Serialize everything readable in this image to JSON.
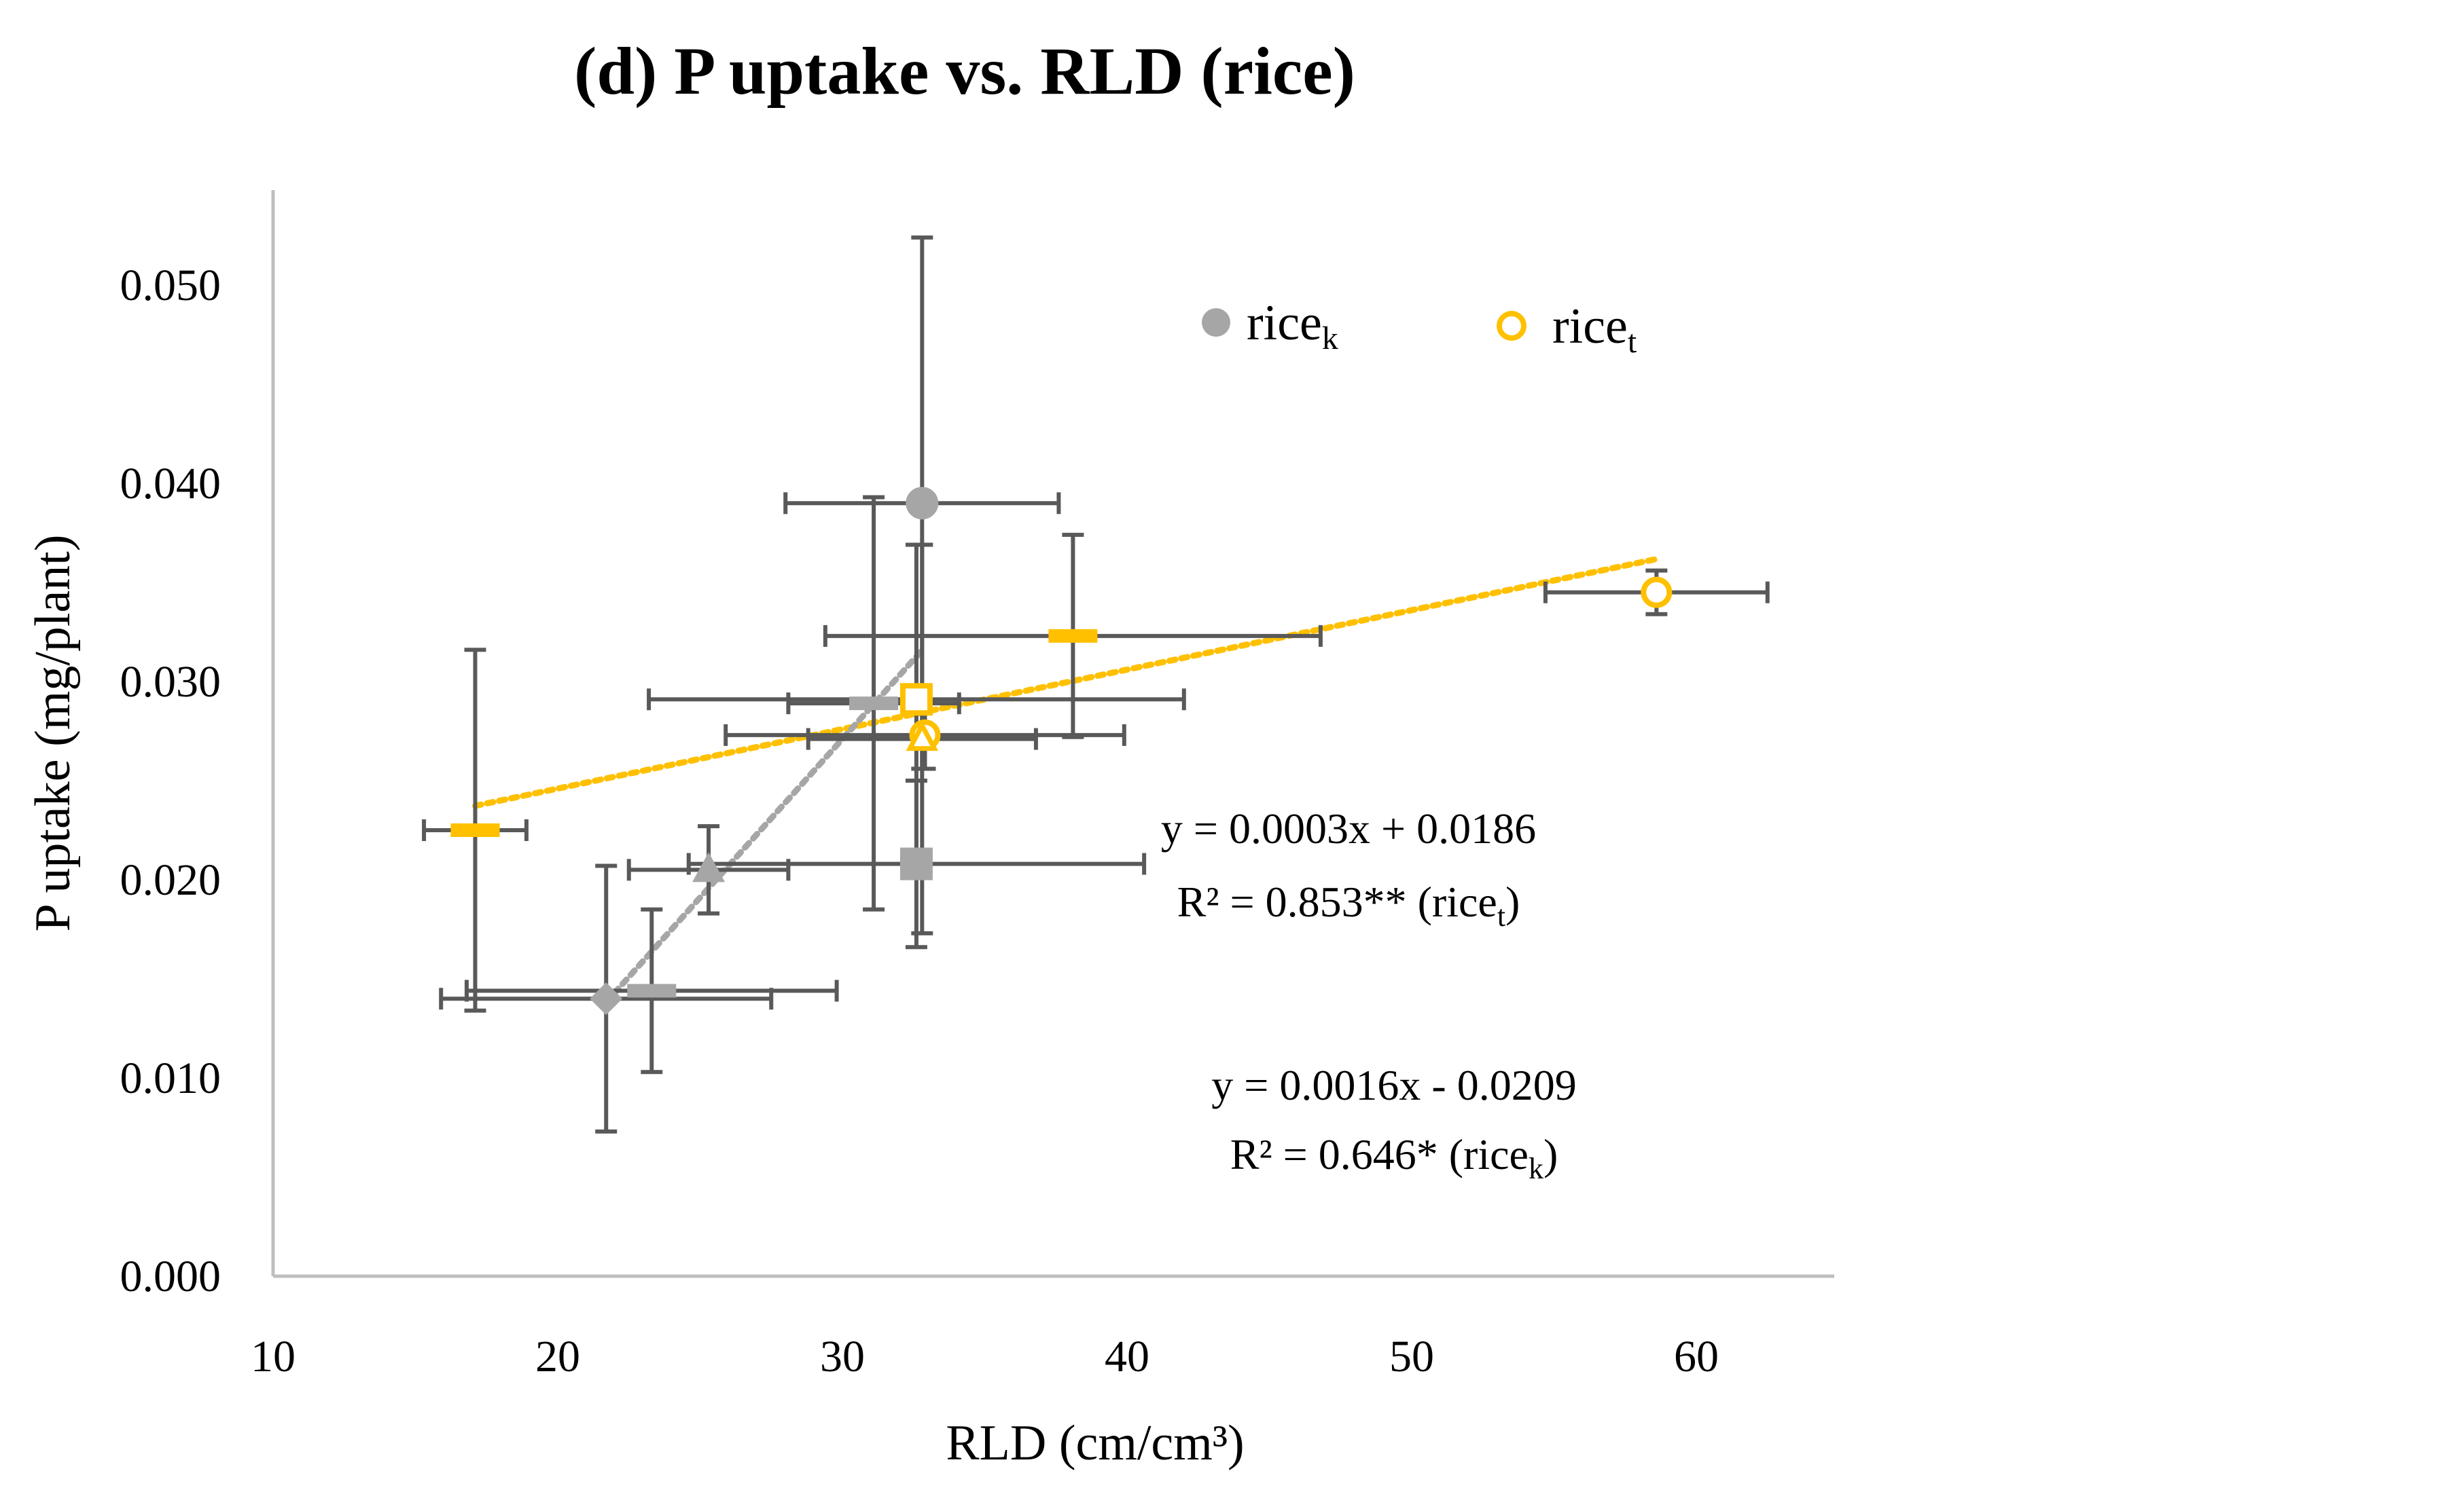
{
  "chart_data": {
    "type": "scatter",
    "title": "(d) P uptake vs. RLD (rice)",
    "xlabel": "RLD (cm/cm³)",
    "ylabel": "P uptake (mg/plant)",
    "xlim": [
      10,
      65
    ],
    "ylim": [
      0,
      0.055
    ],
    "xticks": [
      10,
      20,
      30,
      40,
      50,
      60
    ],
    "xtick_labels": [
      "10",
      "20",
      "30",
      "40",
      "50",
      "60"
    ],
    "yticks": [
      0.0,
      0.01,
      0.02,
      0.03,
      0.04,
      0.05
    ],
    "ytick_labels": [
      "0.000",
      "0.010",
      "0.020",
      "0.030",
      "0.040",
      "0.050"
    ],
    "grid": false,
    "legend_position": "top-right",
    "series": [
      {
        "name": "ricek",
        "legend_base": "rice",
        "legend_sub": "k",
        "color": "#a6a6a6",
        "error_color": "#595959",
        "points": [
          {
            "x": 21.7,
            "y": 0.014,
            "marker": "diamond",
            "xerr": 5.8,
            "yerr": 0.0067
          },
          {
            "x": 23.3,
            "y": 0.0144,
            "marker": "bar",
            "xerr": 6.5,
            "yerr": 0.0041
          },
          {
            "x": 25.3,
            "y": 0.0205,
            "marker": "triangle",
            "xerr": 2.8,
            "yerr": 0.0022
          },
          {
            "x": 31.1,
            "y": 0.0289,
            "marker": "bar",
            "xerr": 3.0,
            "yerr": 0.0104
          },
          {
            "x": 32.6,
            "y": 0.0208,
            "marker": "square",
            "xerr": 8.0,
            "yerr": 0.0042
          },
          {
            "x": 32.8,
            "y": 0.039,
            "marker": "circle",
            "xerr": 4.8,
            "yerr": 0.0134
          }
        ]
      },
      {
        "name": "ricet",
        "legend_base": "rice",
        "legend_sub": "t",
        "color": "#ffc000",
        "error_color": "#595959",
        "points": [
          {
            "x": 17.1,
            "y": 0.0225,
            "marker": "bar",
            "xerr": 1.8,
            "yerr": 0.0091
          },
          {
            "x": 32.6,
            "y": 0.0291,
            "marker": "open-square",
            "xerr": 9.4,
            "yerr": 0.0078
          },
          {
            "x": 32.9,
            "y": 0.0273,
            "marker": "open-circle",
            "xerr": 7.0,
            "yerr": 0.0017
          },
          {
            "x": 32.8,
            "y": 0.0271,
            "marker": "open-triangle",
            "xerr": 4.0,
            "yerr": 0.0098
          },
          {
            "x": 38.1,
            "y": 0.0323,
            "marker": "bar",
            "xerr": 8.7,
            "yerr": 0.0051
          },
          {
            "x": 58.6,
            "y": 0.0345,
            "marker": "open-circle",
            "xerr": 3.9,
            "yerr": 0.0011
          }
        ]
      }
    ],
    "trendlines": [
      {
        "series": "ricet",
        "slope": 0.0003,
        "intercept": 0.0186,
        "x_range": [
          17.1,
          58.6
        ],
        "color": "#ffc000",
        "style": "dotted"
      },
      {
        "series": "ricek",
        "slope": 0.0016,
        "intercept": -0.0209,
        "x_range": [
          21.7,
          32.8
        ],
        "color": "#a6a6a6",
        "style": "dotted"
      }
    ],
    "annotations": [
      {
        "id": "eq-t",
        "line1": "y = 0.0003x + 0.0186",
        "line2_pre": "R² = 0.853** (rice",
        "line2_sub": "t",
        "line2_post": ")"
      },
      {
        "id": "eq-k",
        "line1": "y = 0.0016x - 0.0209",
        "line2_pre": "R² = 0.646* (rice",
        "line2_sub": "k",
        "line2_post": ")"
      }
    ]
  }
}
